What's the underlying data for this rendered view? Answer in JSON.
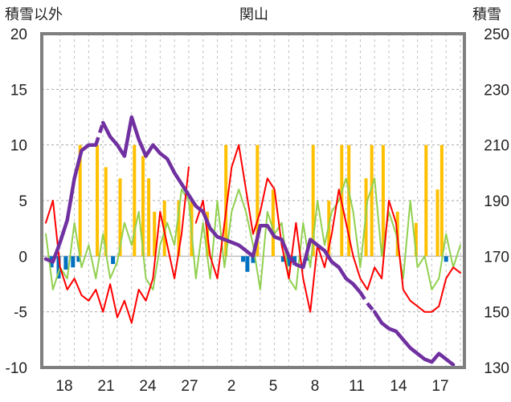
{
  "chart_data": {
    "type": "line",
    "title": "関山",
    "left_axis_label": "積雪以外",
    "right_axis_label": "積雪",
    "left_ylim": [
      -10,
      20
    ],
    "left_ticks": [
      "20",
      "15",
      "10",
      "5",
      "0",
      "-5",
      "-10"
    ],
    "right_ylim": [
      130,
      250
    ],
    "right_ticks": [
      "250",
      "230",
      "210",
      "190",
      "170",
      "150",
      "130"
    ],
    "x_ticks": [
      "18",
      "21",
      "24",
      "27",
      "2",
      "5",
      "8",
      "11",
      "14",
      "17"
    ],
    "x_day_range": [
      0,
      29
    ],
    "grid": true,
    "colors": {
      "precip": "#ffc000",
      "snowfall_neg": "#0070c0",
      "temp_max": "#ff0000",
      "temp_min": "#92d050",
      "snow_depth": "#7030a0"
    },
    "precip_bars": [
      [
        2.4,
        10
      ],
      [
        3.6,
        10
      ],
      [
        4.2,
        8
      ],
      [
        5.2,
        7
      ],
      [
        6.2,
        10
      ],
      [
        6.8,
        9
      ],
      [
        7.2,
        7
      ],
      [
        7.6,
        4
      ],
      [
        8.3,
        5
      ],
      [
        9.3,
        5
      ],
      [
        10.2,
        5
      ],
      [
        11.3,
        4
      ],
      [
        12.6,
        10
      ],
      [
        14.8,
        10
      ],
      [
        15.9,
        6
      ],
      [
        18.7,
        10
      ],
      [
        19.8,
        5
      ],
      [
        20.7,
        10
      ],
      [
        21.2,
        10
      ],
      [
        22.4,
        7
      ],
      [
        22.8,
        10
      ],
      [
        23.6,
        10
      ],
      [
        24.6,
        4
      ],
      [
        25.9,
        3
      ],
      [
        26.6,
        10
      ],
      [
        27.4,
        6
      ],
      [
        27.7,
        10
      ]
    ],
    "snowfall_bars": [
      [
        0.4,
        -1
      ],
      [
        0.9,
        -2
      ],
      [
        1.4,
        -1.2
      ],
      [
        1.9,
        -1
      ],
      [
        2.3,
        -0.5
      ],
      [
        4.7,
        -0.7
      ],
      [
        13.8,
        -0.5
      ],
      [
        14.1,
        -1.4
      ],
      [
        14.5,
        -0.6
      ],
      [
        16.6,
        -0.5
      ],
      [
        17.0,
        -0.9
      ],
      [
        17.4,
        -0.8
      ],
      [
        18.3,
        -0.4
      ],
      [
        28.0,
        -0.5
      ]
    ],
    "series": [
      {
        "key": "temp_max",
        "points": [
          [
            0,
            3
          ],
          [
            0.5,
            5
          ],
          [
            1,
            -1
          ],
          [
            1.5,
            -3
          ],
          [
            2,
            -2
          ],
          [
            2.5,
            -3.5
          ],
          [
            3,
            -4
          ],
          [
            3.5,
            -3
          ],
          [
            4,
            -5
          ],
          [
            4.5,
            -2.5
          ],
          [
            5,
            -5.5
          ],
          [
            5.5,
            -4
          ],
          [
            6,
            -6
          ],
          [
            6.5,
            -3
          ],
          [
            7,
            -4
          ],
          [
            7.5,
            -2
          ],
          [
            8,
            4
          ],
          [
            8.5,
            1
          ],
          [
            9,
            -2
          ],
          [
            9.5,
            2
          ],
          [
            10,
            8
          ],
          [
            10.5,
            3
          ],
          [
            11,
            5
          ],
          [
            11.5,
            0
          ],
          [
            12,
            -2
          ],
          [
            12.5,
            3
          ],
          [
            13,
            8
          ],
          [
            13.5,
            10
          ],
          [
            14,
            6
          ],
          [
            14.5,
            2
          ],
          [
            15,
            4
          ],
          [
            15.5,
            7
          ],
          [
            16,
            6
          ],
          [
            16.5,
            1
          ],
          [
            17,
            -2
          ],
          [
            17.5,
            3
          ],
          [
            18,
            -2
          ],
          [
            18.5,
            -5
          ],
          [
            19,
            1
          ],
          [
            19.5,
            -1
          ],
          [
            20,
            2
          ],
          [
            20.5,
            6
          ],
          [
            21,
            3
          ],
          [
            21.5,
            0
          ],
          [
            22,
            -2
          ],
          [
            22.5,
            -3
          ],
          [
            23,
            -1
          ],
          [
            23.5,
            -2
          ],
          [
            24,
            5
          ],
          [
            24.5,
            3
          ],
          [
            25,
            -3
          ],
          [
            25.5,
            -4
          ],
          [
            26,
            -4.5
          ],
          [
            26.5,
            -5
          ],
          [
            27,
            -5
          ],
          [
            27.5,
            -4.5
          ],
          [
            28,
            -2
          ],
          [
            28.5,
            -1
          ],
          [
            29,
            -1.5
          ]
        ],
        "break_after": 20
      },
      {
        "key": "temp_min",
        "points": [
          [
            0,
            2
          ],
          [
            0.5,
            -3
          ],
          [
            1,
            -1
          ],
          [
            1.5,
            -2
          ],
          [
            2,
            3
          ],
          [
            2.5,
            -1
          ],
          [
            3,
            1
          ],
          [
            3.5,
            -2
          ],
          [
            4,
            2
          ],
          [
            4.5,
            -2
          ],
          [
            5,
            -0.5
          ],
          [
            5.5,
            3
          ],
          [
            6,
            1
          ],
          [
            6.5,
            4
          ],
          [
            7,
            -2
          ],
          [
            7.5,
            -3
          ],
          [
            8,
            1
          ],
          [
            8.5,
            3
          ],
          [
            9,
            1
          ],
          [
            9.5,
            6
          ],
          [
            10,
            5
          ],
          [
            10.5,
            -2
          ],
          [
            11,
            3
          ],
          [
            11.5,
            -2
          ],
          [
            12,
            5
          ],
          [
            12.5,
            -1
          ],
          [
            13,
            4
          ],
          [
            13.5,
            6
          ],
          [
            14,
            4
          ],
          [
            14.5,
            1
          ],
          [
            15,
            -3
          ],
          [
            15.5,
            4
          ],
          [
            16,
            2
          ],
          [
            16.5,
            3
          ],
          [
            17,
            -2
          ],
          [
            17.5,
            -3
          ],
          [
            18,
            3
          ],
          [
            18.5,
            -1
          ],
          [
            19,
            5
          ],
          [
            19.5,
            1
          ],
          [
            20,
            4
          ],
          [
            20.5,
            5
          ],
          [
            21,
            7
          ],
          [
            21.5,
            4
          ],
          [
            22,
            -1
          ],
          [
            22.5,
            5
          ],
          [
            23,
            7
          ],
          [
            23.5,
            0
          ],
          [
            24,
            4
          ],
          [
            24.5,
            2
          ],
          [
            25,
            -2
          ],
          [
            25.5,
            5
          ],
          [
            26,
            -1
          ],
          [
            26.5,
            0
          ],
          [
            27,
            -3
          ],
          [
            27.5,
            -2
          ],
          [
            28,
            2
          ],
          [
            28.5,
            -1
          ],
          [
            29,
            1
          ]
        ]
      },
      {
        "key": "snow_depth",
        "points": [
          [
            0,
            169
          ],
          [
            0.5,
            168
          ],
          [
            1,
            175
          ],
          [
            1.5,
            183
          ],
          [
            2,
            198
          ],
          [
            2.5,
            208
          ],
          [
            3,
            210
          ],
          [
            3.5,
            210
          ],
          [
            4,
            218
          ],
          [
            4.5,
            213
          ],
          [
            5,
            210
          ],
          [
            5.5,
            206
          ],
          [
            6,
            220
          ],
          [
            6.5,
            212
          ],
          [
            7,
            206
          ],
          [
            7.5,
            210
          ],
          [
            8,
            207
          ],
          [
            8.5,
            205
          ],
          [
            9,
            200
          ],
          [
            9.5,
            196
          ],
          [
            10,
            192
          ],
          [
            10.5,
            188
          ],
          [
            11,
            186
          ],
          [
            11.5,
            180
          ],
          [
            12,
            177
          ],
          [
            12.5,
            176
          ],
          [
            13,
            175
          ],
          [
            13.5,
            174
          ],
          [
            14,
            172
          ],
          [
            14.5,
            170
          ],
          [
            15,
            181
          ],
          [
            15.5,
            181
          ],
          [
            16,
            177
          ],
          [
            16.5,
            176
          ],
          [
            17,
            170
          ],
          [
            17.5,
            167
          ],
          [
            18,
            166
          ],
          [
            18.5,
            176
          ],
          [
            19,
            174
          ],
          [
            19.5,
            172
          ],
          [
            20,
            168
          ],
          [
            20.5,
            166
          ],
          [
            21,
            162
          ],
          [
            21.5,
            160
          ],
          [
            22,
            157
          ],
          [
            22.5,
            153
          ],
          [
            23,
            150
          ],
          [
            23.5,
            146
          ],
          [
            24,
            144
          ],
          [
            24.5,
            143
          ],
          [
            25,
            140
          ],
          [
            25.5,
            137
          ],
          [
            26,
            135
          ],
          [
            26.5,
            133
          ],
          [
            27,
            132
          ],
          [
            27.5,
            135
          ],
          [
            28,
            133
          ],
          [
            28.5,
            131
          ]
        ],
        "gaps_after": [
          7,
          44,
          45
        ]
      }
    ]
  }
}
